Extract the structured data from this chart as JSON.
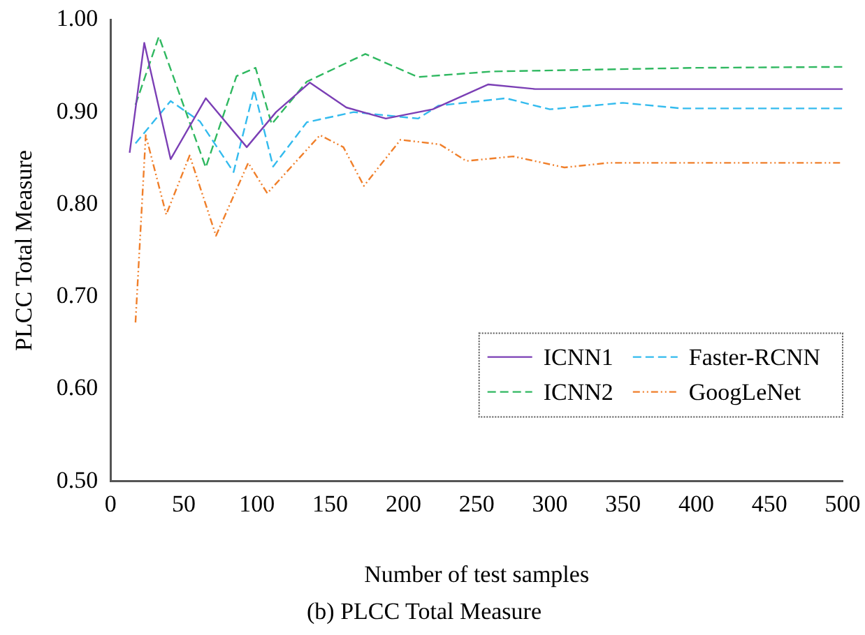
{
  "chart_data": {
    "type": "line",
    "title": "(b) PLCC Total Measure",
    "xlabel": "Number of test samples",
    "ylabel": "PLCC Total Measure",
    "xlim": [
      0,
      500
    ],
    "xticks": [
      0,
      50,
      100,
      150,
      200,
      250,
      300,
      350,
      400,
      450,
      500
    ],
    "ylim": [
      0.5,
      1.0
    ],
    "yticks": [
      {
        "value": 0.5,
        "label": "0.50"
      },
      {
        "value": 0.6,
        "label": "0.60"
      },
      {
        "value": 0.7,
        "label": "0.70"
      },
      {
        "value": 0.8,
        "label": "0.80"
      },
      {
        "value": 0.9,
        "label": "0.90"
      },
      {
        "value": 1.0,
        "label": "1.00"
      }
    ],
    "grid": false,
    "legend": "bottom right",
    "marker": "none",
    "series": [
      {
        "name": "ICNN1",
        "color": "#7b3fb5",
        "line_style": "solid",
        "x": [
          13,
          23,
          41,
          65,
          93,
          113,
          136,
          161,
          188,
          220,
          258,
          290,
          500
        ],
        "values": [
          0.856,
          0.975,
          0.849,
          0.915,
          0.862,
          0.9,
          0.932,
          0.905,
          0.893,
          0.903,
          0.93,
          0.925,
          0.925
        ]
      },
      {
        "name": "ICNN2",
        "color": "#2fb860",
        "line_style": "dashed",
        "x": [
          17,
          33,
          65,
          86,
          99,
          110,
          134,
          174,
          210,
          260,
          400,
          500
        ],
        "values": [
          0.908,
          0.982,
          0.84,
          0.939,
          0.948,
          0.887,
          0.933,
          0.963,
          0.938,
          0.944,
          0.948,
          0.949
        ]
      },
      {
        "name": "Faster-RCNN",
        "color": "#33bbee",
        "line_style": "dashed",
        "x": [
          17,
          41,
          61,
          84,
          98,
          111,
          134,
          166,
          210,
          224,
          270,
          300,
          350,
          390,
          500
        ],
        "values": [
          0.866,
          0.912,
          0.89,
          0.835,
          0.924,
          0.841,
          0.889,
          0.9,
          0.893,
          0.907,
          0.915,
          0.903,
          0.91,
          0.904,
          0.904
        ]
      },
      {
        "name": "GoogLeNet",
        "color": "#f07f2a",
        "line_style": "dotted",
        "x": [
          17,
          24,
          38,
          54,
          72,
          94,
          107,
          143,
          159,
          173,
          198,
          225,
          243,
          275,
          310,
          340,
          500
        ],
        "values": [
          0.672,
          0.875,
          0.789,
          0.853,
          0.766,
          0.845,
          0.812,
          0.875,
          0.862,
          0.82,
          0.87,
          0.865,
          0.847,
          0.852,
          0.84,
          0.845,
          0.845
        ]
      }
    ]
  }
}
